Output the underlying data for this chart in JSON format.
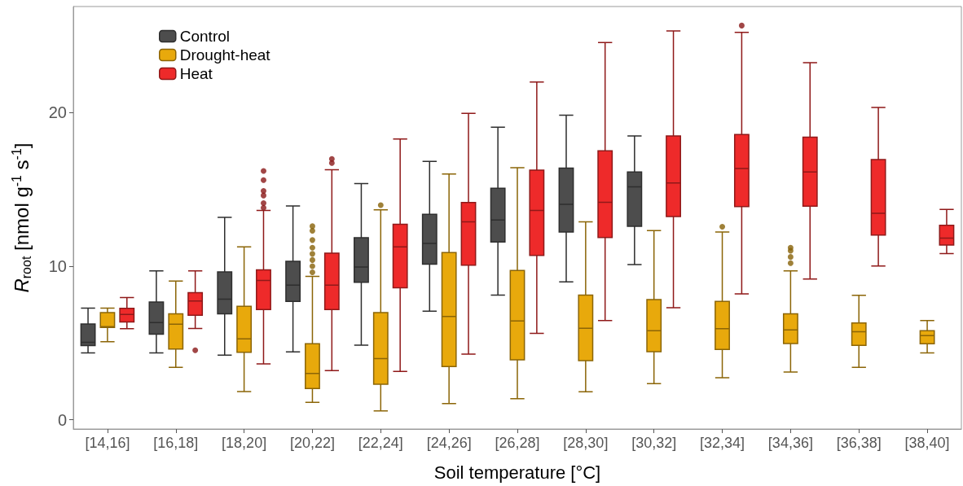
{
  "chart_data": {
    "type": "box",
    "xlabel": "Soil temperature [°C]",
    "ylabel": "R$_{root}$ [nmol g$^{-1}$ s$^{-1}$]",
    "categories": [
      "[14,16]",
      "[16,18]",
      "[18,20]",
      "[20,22]",
      "[22,24]",
      "[24,26]",
      "[26,28]",
      "[28,30]",
      "[30,32]",
      "[32,34]",
      "[34,36]",
      "[36,38]",
      "[38,40]"
    ],
    "ylim": [
      -0.6,
      26.9
    ],
    "yticks": [
      0,
      10,
      20
    ],
    "grid": false,
    "legend": "top left",
    "series": [
      {
        "name": "Control",
        "color": "#4d4d4d",
        "boxes": [
          {
            "low": 4.35,
            "q1": 4.83,
            "median": 5.04,
            "q3": 6.24,
            "high": 7.27
          },
          {
            "low": 4.35,
            "q1": 5.57,
            "median": 6.33,
            "q3": 7.66,
            "high": 9.69
          },
          {
            "low": 4.21,
            "q1": 6.9,
            "median": 7.85,
            "q3": 9.62,
            "high": 13.17
          },
          {
            "low": 4.42,
            "q1": 7.71,
            "median": 8.77,
            "q3": 10.31,
            "high": 13.92
          },
          {
            "low": 4.86,
            "q1": 8.95,
            "median": 9.94,
            "q3": 11.85,
            "high": 15.38
          },
          {
            "low": 7.07,
            "q1": 10.13,
            "median": 11.48,
            "q3": 13.38,
            "high": 16.82
          },
          {
            "low": 8.12,
            "q1": 11.58,
            "median": 13.0,
            "q3": 15.07,
            "high": 19.05
          },
          {
            "low": 8.98,
            "q1": 12.22,
            "median": 14.02,
            "q3": 16.38,
            "high": 19.82
          },
          {
            "low": 10.1,
            "q1": 12.59,
            "median": 15.17,
            "q3": 16.13,
            "high": 18.48
          },
          null,
          null,
          null,
          null
        ]
      },
      {
        "name": "Drought-heat",
        "color": "#e8a90c",
        "boxes": [
          {
            "low": 5.08,
            "q1": 6.01,
            "median": 6.06,
            "q3": 6.98,
            "high": 7.27
          },
          {
            "low": 3.41,
            "q1": 4.6,
            "median": 6.22,
            "q3": 6.9,
            "high": 9.03
          },
          {
            "low": 1.84,
            "q1": 4.39,
            "median": 5.27,
            "q3": 7.39,
            "high": 11.25
          },
          {
            "low": 1.13,
            "q1": 2.03,
            "median": 3.01,
            "q3": 4.95,
            "high": 9.34,
            "outliers": [
              12.6,
              12.3,
              11.7,
              11.2,
              10.8,
              10.4,
              10.0,
              9.6
            ]
          },
          {
            "low": 0.58,
            "q1": 2.32,
            "median": 3.98,
            "q3": 6.98,
            "high": 13.67,
            "outliers": [
              13.97
            ]
          },
          {
            "low": 1.06,
            "q1": 3.47,
            "median": 6.72,
            "q3": 10.89,
            "high": 16.0
          },
          {
            "low": 1.38,
            "q1": 3.91,
            "median": 6.44,
            "q3": 9.72,
            "high": 16.41
          },
          {
            "low": 1.82,
            "q1": 3.85,
            "median": 5.96,
            "q3": 8.12,
            "high": 12.89
          },
          {
            "low": 2.35,
            "q1": 4.44,
            "median": 5.8,
            "q3": 7.82,
            "high": 12.31
          },
          {
            "low": 2.74,
            "q1": 4.58,
            "median": 5.93,
            "q3": 7.71,
            "high": 12.22,
            "outliers": [
              12.57
            ]
          },
          {
            "low": 3.11,
            "q1": 4.97,
            "median": 5.85,
            "q3": 6.9,
            "high": 9.69,
            "outliers": [
              11.2,
              11.0,
              10.6,
              10.2
            ]
          },
          {
            "low": 3.41,
            "q1": 4.84,
            "median": 5.73,
            "q3": 6.3,
            "high": 8.1
          },
          {
            "low": 4.35,
            "q1": 4.95,
            "median": 5.48,
            "q3": 5.8,
            "high": 6.46
          }
        ]
      },
      {
        "name": "Heat",
        "color": "#ee2a2a",
        "boxes": [
          {
            "low": 5.93,
            "q1": 6.37,
            "median": 6.86,
            "q3": 7.25,
            "high": 7.96
          },
          {
            "low": 5.94,
            "q1": 6.81,
            "median": 7.73,
            "q3": 8.28,
            "high": 9.69,
            "outliers": [
              4.53
            ]
          },
          {
            "low": 3.64,
            "q1": 7.18,
            "median": 9.07,
            "q3": 9.76,
            "high": 13.63,
            "outliers": [
              16.2,
              15.6,
              14.9,
              14.6,
              14.1,
              13.8
            ]
          },
          {
            "low": 3.2,
            "q1": 7.18,
            "median": 8.77,
            "q3": 10.84,
            "high": 16.27,
            "outliers": [
              16.98,
              16.71
            ]
          },
          {
            "low": 3.15,
            "q1": 8.59,
            "median": 11.26,
            "q3": 12.73,
            "high": 18.27
          },
          {
            "low": 4.28,
            "q1": 10.06,
            "median": 12.88,
            "q3": 14.15,
            "high": 19.95
          },
          {
            "low": 5.62,
            "q1": 10.7,
            "median": 13.63,
            "q3": 16.25,
            "high": 21.98
          },
          {
            "low": 6.46,
            "q1": 11.87,
            "median": 14.16,
            "q3": 17.51,
            "high": 24.56
          },
          {
            "low": 7.3,
            "q1": 13.23,
            "median": 15.42,
            "q3": 18.48,
            "high": 25.31
          },
          {
            "low": 8.19,
            "q1": 13.88,
            "median": 16.36,
            "q3": 18.57,
            "high": 25.22,
            "outliers": [
              25.66
            ]
          },
          {
            "low": 9.16,
            "q1": 13.9,
            "median": 16.13,
            "q3": 18.39,
            "high": 23.25
          },
          {
            "low": 10.01,
            "q1": 12.03,
            "median": 13.44,
            "q3": 16.94,
            "high": 20.33
          },
          {
            "low": 10.82,
            "q1": 11.37,
            "median": 11.83,
            "q3": 12.66,
            "high": 13.69
          }
        ]
      }
    ]
  }
}
